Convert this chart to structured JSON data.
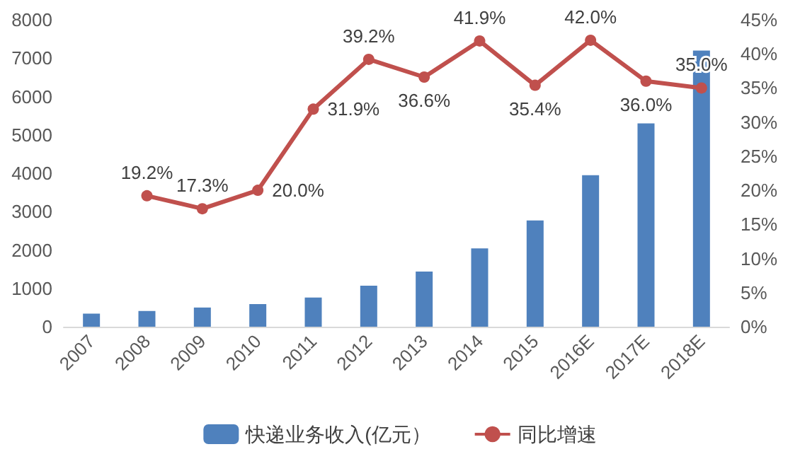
{
  "chart_data": {
    "type": "bar",
    "categories": [
      "2007",
      "2008",
      "2009",
      "2010",
      "2011",
      "2012",
      "2013",
      "2014",
      "2015",
      "2016E",
      "2017E",
      "2018E"
    ],
    "series": [
      {
        "name": "快递业务收入(亿元）",
        "color": "#4f81bd",
        "values": [
          340,
          410,
          500,
          590,
          760,
          1070,
          1440,
          2040,
          2770,
          3950,
          5300,
          7200
        ]
      },
      {
        "name": "同比增速",
        "type": "line",
        "axis": "y2",
        "color": "#c0504d",
        "values": [
          null,
          19.2,
          17.3,
          20.0,
          31.9,
          39.2,
          36.6,
          41.9,
          35.4,
          42.0,
          36.0,
          35.0
        ],
        "value_labels": [
          null,
          "19.2%",
          "17.3%",
          "20.0%",
          "31.9%",
          "39.2%",
          "36.6%",
          "41.9%",
          "35.4%",
          "42.0%",
          "36.0%",
          "35.0%"
        ]
      }
    ],
    "ylim": [
      0,
      8000
    ],
    "yticks": [
      0,
      1000,
      2000,
      3000,
      4000,
      5000,
      6000,
      7000,
      8000
    ],
    "y2lim": [
      0,
      45
    ],
    "y2ticks": [
      {
        "value": 0,
        "label": "0%"
      },
      {
        "value": 5,
        "label": "5%"
      },
      {
        "value": 10,
        "label": "10%"
      },
      {
        "value": 15,
        "label": "15%"
      },
      {
        "value": 20,
        "label": "20%"
      },
      {
        "value": 25,
        "label": "25%"
      },
      {
        "value": 30,
        "label": "30%"
      },
      {
        "value": 35,
        "label": "35%"
      },
      {
        "value": 40,
        "label": "40%"
      },
      {
        "value": 45,
        "label": "45%"
      }
    ],
    "grid": false,
    "legend": "bottom",
    "marker": "circle",
    "line_style": "solid"
  }
}
